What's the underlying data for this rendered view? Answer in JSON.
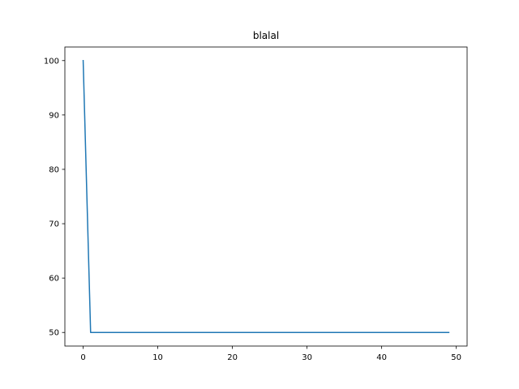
{
  "chart_data": {
    "type": "line",
    "title": "blalal",
    "xlabel": "",
    "ylabel": "",
    "x_ticks": [
      0,
      10,
      20,
      30,
      40,
      50
    ],
    "y_ticks": [
      50,
      60,
      70,
      80,
      90,
      100
    ],
    "xlim": [
      -2.45,
      51.45
    ],
    "ylim": [
      47.5,
      102.5
    ],
    "grid": false,
    "series": [
      {
        "color": "#1f77b4",
        "x": [
          0,
          1,
          2,
          3,
          4,
          5,
          6,
          7,
          8,
          9,
          10,
          11,
          12,
          13,
          14,
          15,
          16,
          17,
          18,
          19,
          20,
          21,
          22,
          23,
          24,
          25,
          26,
          27,
          28,
          29,
          30,
          31,
          32,
          33,
          34,
          35,
          36,
          37,
          38,
          39,
          40,
          41,
          42,
          43,
          44,
          45,
          46,
          47,
          48,
          49
        ],
        "y": [
          100,
          50,
          50,
          50,
          50,
          50,
          50,
          50,
          50,
          50,
          50,
          50,
          50,
          50,
          50,
          50,
          50,
          50,
          50,
          50,
          50,
          50,
          50,
          50,
          50,
          50,
          50,
          50,
          50,
          50,
          50,
          50,
          50,
          50,
          50,
          50,
          50,
          50,
          50,
          50,
          50,
          50,
          50,
          50,
          50,
          50,
          50,
          50,
          50,
          50
        ]
      }
    ]
  }
}
